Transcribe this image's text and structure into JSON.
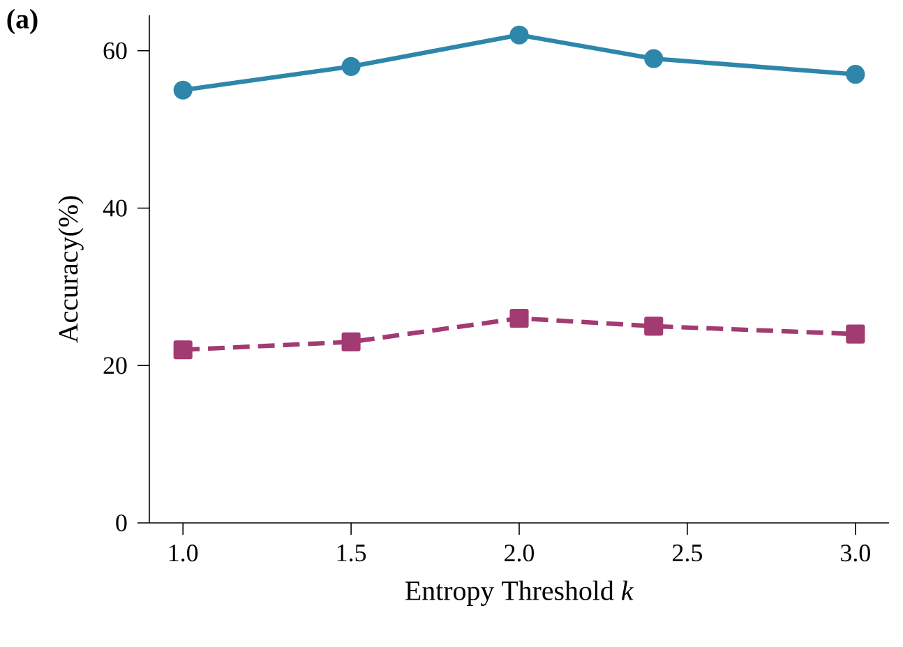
{
  "chart_data": {
    "type": "line",
    "title": "(a)",
    "xlabel": "Entropy Threshold *k*",
    "ylabel": "Accuracy(%)",
    "x": [
      1.0,
      1.5,
      2.0,
      2.4,
      3.0
    ],
    "series": [
      {
        "color": "#2e86ab",
        "marker": "circle",
        "line_style": "solid",
        "values": [
          55,
          58,
          62,
          59,
          57
        ]
      },
      {
        "color": "#a23b72",
        "marker": "square",
        "line_style": "dashed",
        "values": [
          22,
          23,
          26,
          25,
          24
        ]
      }
    ],
    "xlim": [
      0.9,
      3.1
    ],
    "ylim": [
      0,
      64.5
    ],
    "xticks": [
      {
        "value": 1.0,
        "label": "1.0"
      },
      {
        "value": 1.5,
        "label": "1.5"
      },
      {
        "value": 2.0,
        "label": "2.0"
      },
      {
        "value": 2.5,
        "label": "2.5"
      },
      {
        "value": 3.0,
        "label": "3.0"
      }
    ],
    "yticks": [
      0,
      20,
      40,
      60
    ],
    "grid": false
  }
}
